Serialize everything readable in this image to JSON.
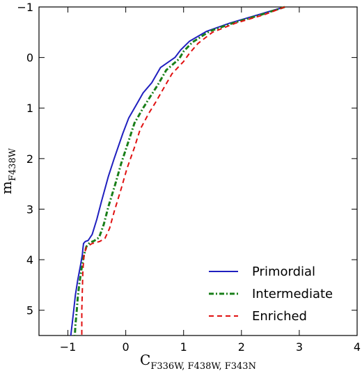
{
  "chart_data": {
    "type": "line",
    "xlabel": "C",
    "xlabel_subscript": "F336W, F438W, F343N",
    "ylabel": "m",
    "ylabel_subscript": "F438W",
    "xlim": [
      -1.5,
      4
    ],
    "ylim": [
      5.5,
      -1
    ],
    "y_inverted": true,
    "grid": false,
    "legend_placement": "bottom-right",
    "x_ticks": [
      -1,
      0,
      1,
      2,
      3,
      4
    ],
    "y_ticks": [
      -1,
      0,
      1,
      2,
      3,
      4,
      5
    ],
    "series": [
      {
        "name": "Primordial",
        "color": "#1f1fbf",
        "style": "solid",
        "points": [
          [
            2.75,
            -1.0
          ],
          [
            2.3,
            -0.85
          ],
          [
            1.8,
            -0.68
          ],
          [
            1.4,
            -0.52
          ],
          [
            1.1,
            -0.32
          ],
          [
            0.95,
            -0.15
          ],
          [
            0.85,
            0.0
          ],
          [
            0.6,
            0.2
          ],
          [
            0.45,
            0.5
          ],
          [
            0.3,
            0.7
          ],
          [
            0.2,
            0.9
          ],
          [
            0.05,
            1.2
          ],
          [
            -0.05,
            1.5
          ],
          [
            -0.2,
            2.0
          ],
          [
            -0.3,
            2.35
          ],
          [
            -0.42,
            2.85
          ],
          [
            -0.5,
            3.2
          ],
          [
            -0.58,
            3.5
          ],
          [
            -0.65,
            3.62
          ],
          [
            -0.7,
            3.64
          ],
          [
            -0.73,
            3.68
          ],
          [
            -0.74,
            3.78
          ],
          [
            -0.75,
            3.9
          ],
          [
            -0.78,
            4.1
          ],
          [
            -0.83,
            4.4
          ],
          [
            -0.87,
            4.7
          ],
          [
            -0.9,
            5.0
          ],
          [
            -0.93,
            5.3
          ],
          [
            -0.95,
            5.5
          ]
        ]
      },
      {
        "name": "Intermediate",
        "color": "#1a7f1a",
        "style": "dash-dot",
        "points": [
          [
            2.75,
            -1.0
          ],
          [
            2.35,
            -0.85
          ],
          [
            1.85,
            -0.68
          ],
          [
            1.45,
            -0.52
          ],
          [
            1.15,
            -0.3
          ],
          [
            1.0,
            -0.12
          ],
          [
            0.92,
            0.03
          ],
          [
            0.7,
            0.25
          ],
          [
            0.55,
            0.55
          ],
          [
            0.42,
            0.78
          ],
          [
            0.3,
            1.0
          ],
          [
            0.15,
            1.3
          ],
          [
            0.05,
            1.65
          ],
          [
            -0.08,
            2.1
          ],
          [
            -0.18,
            2.5
          ],
          [
            -0.3,
            2.95
          ],
          [
            -0.38,
            3.3
          ],
          [
            -0.46,
            3.56
          ],
          [
            -0.55,
            3.63
          ],
          [
            -0.62,
            3.66
          ],
          [
            -0.68,
            3.74
          ],
          [
            -0.72,
            3.9
          ],
          [
            -0.76,
            4.15
          ],
          [
            -0.8,
            4.45
          ],
          [
            -0.83,
            4.75
          ],
          [
            -0.85,
            5.05
          ],
          [
            -0.87,
            5.3
          ],
          [
            -0.88,
            5.5
          ]
        ]
      },
      {
        "name": "Enriched",
        "color": "#e01010",
        "style": "dashed",
        "points": [
          [
            2.75,
            -1.0
          ],
          [
            2.4,
            -0.85
          ],
          [
            1.9,
            -0.68
          ],
          [
            1.5,
            -0.5
          ],
          [
            1.25,
            -0.28
          ],
          [
            1.1,
            -0.08
          ],
          [
            1.0,
            0.08
          ],
          [
            0.8,
            0.32
          ],
          [
            0.65,
            0.62
          ],
          [
            0.52,
            0.88
          ],
          [
            0.4,
            1.1
          ],
          [
            0.25,
            1.42
          ],
          [
            0.15,
            1.78
          ],
          [
            0.02,
            2.2
          ],
          [
            -0.08,
            2.6
          ],
          [
            -0.2,
            3.05
          ],
          [
            -0.28,
            3.38
          ],
          [
            -0.36,
            3.58
          ],
          [
            -0.45,
            3.64
          ],
          [
            -0.58,
            3.68
          ],
          [
            -0.68,
            3.75
          ],
          [
            -0.72,
            3.9
          ],
          [
            -0.74,
            4.2
          ],
          [
            -0.75,
            4.6
          ],
          [
            -0.76,
            5.0
          ],
          [
            -0.76,
            5.3
          ],
          [
            -0.76,
            5.5
          ]
        ]
      }
    ]
  }
}
